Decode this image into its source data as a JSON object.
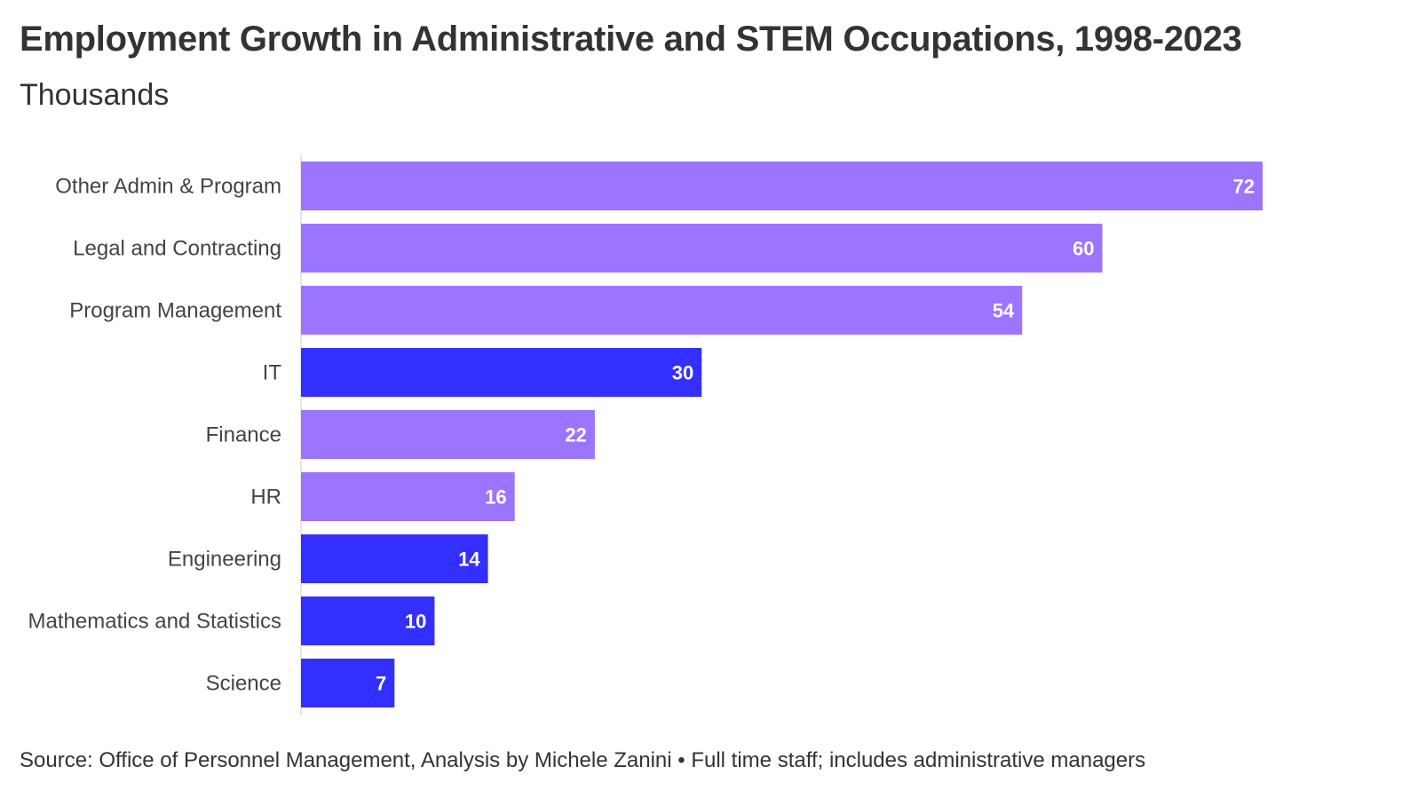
{
  "header": {
    "title": "Employment Growth in Administrative and STEM Occupations, 1998-2023",
    "subtitle": "Thousands"
  },
  "footer": {
    "source": "Source: Office of Personnel Management, Analysis by Michele Zanini • Full time staff; includes administrative managers"
  },
  "colors": {
    "admin": "#9b74ff",
    "stem": "#3330ff"
  },
  "chart_data": {
    "type": "bar",
    "orientation": "horizontal",
    "title": "Employment Growth in Administrative and STEM Occupations, 1998-2023",
    "subtitle": "Thousands",
    "categories": [
      "Other Admin & Program",
      "Legal and Contracting",
      "Program Management",
      "IT",
      "Finance",
      "HR",
      "Engineering",
      "Mathematics and Statistics",
      "Science"
    ],
    "values": [
      72,
      60,
      54,
      30,
      22,
      16,
      14,
      10,
      7
    ],
    "groups": [
      "admin",
      "admin",
      "admin",
      "stem",
      "admin",
      "admin",
      "stem",
      "stem",
      "stem"
    ],
    "xlim": [
      0,
      72
    ],
    "grid": false,
    "legend": "none"
  }
}
